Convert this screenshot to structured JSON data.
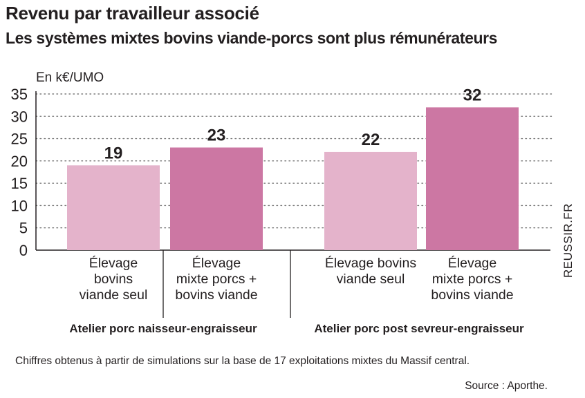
{
  "chart_data": {
    "type": "bar",
    "title": "Revenu par travailleur associé",
    "subtitle": "Les systèmes mixtes bovins viande-porcs sont plus rémunérateurs",
    "ylabel": "En k€/UMO",
    "ylim": [
      0,
      35
    ],
    "yticks": [
      0,
      5,
      10,
      15,
      20,
      25,
      30,
      35
    ],
    "grid": true,
    "categories": [
      "Élevage\nbovins\nviande seul",
      "Élevage\nmixte porcs +\nbovins viande",
      "Élevage bovins\nviande seul",
      "Élevage\nmixte porcs +\nbovins viande"
    ],
    "groups": [
      {
        "label": "Atelier porc naisseur-engraisseur",
        "categories": [
          0,
          1
        ]
      },
      {
        "label": "Atelier porc post sevreur-engraisseur",
        "categories": [
          2,
          3
        ]
      }
    ],
    "values": [
      19,
      23,
      22,
      32
    ],
    "colors": [
      "#e4b3cb",
      "#cc77a3",
      "#e4b3cb",
      "#cc77a3"
    ]
  },
  "side_label": "REUSSIR.FR",
  "footnote": "Chiffres obtenus à partir de simulations sur la base de 17 exploitations mixtes du Massif central.",
  "source": "Source : Aporthe."
}
